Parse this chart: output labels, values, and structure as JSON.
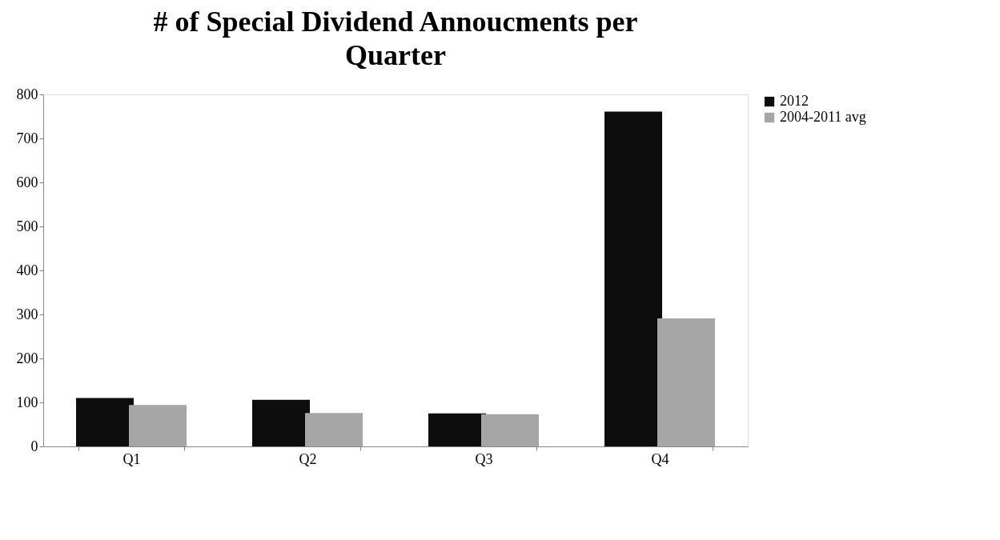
{
  "chart_data": {
    "type": "bar",
    "title": "# of Special Dividend Annoucments per Quarter",
    "categories": [
      "Q1",
      "Q2",
      "Q3",
      "Q4"
    ],
    "series": [
      {
        "name": "2012",
        "color": "#0d0d0d",
        "values": [
          110,
          106,
          75,
          761
        ]
      },
      {
        "name": "2004-2011 avg",
        "color": "#a6a6a6",
        "values": [
          94,
          76,
          73,
          291
        ]
      }
    ],
    "ylim": [
      0,
      800
    ],
    "yticks": [
      0,
      100,
      200,
      300,
      400,
      500,
      600,
      700,
      800
    ],
    "grid": false,
    "legend": "right"
  }
}
